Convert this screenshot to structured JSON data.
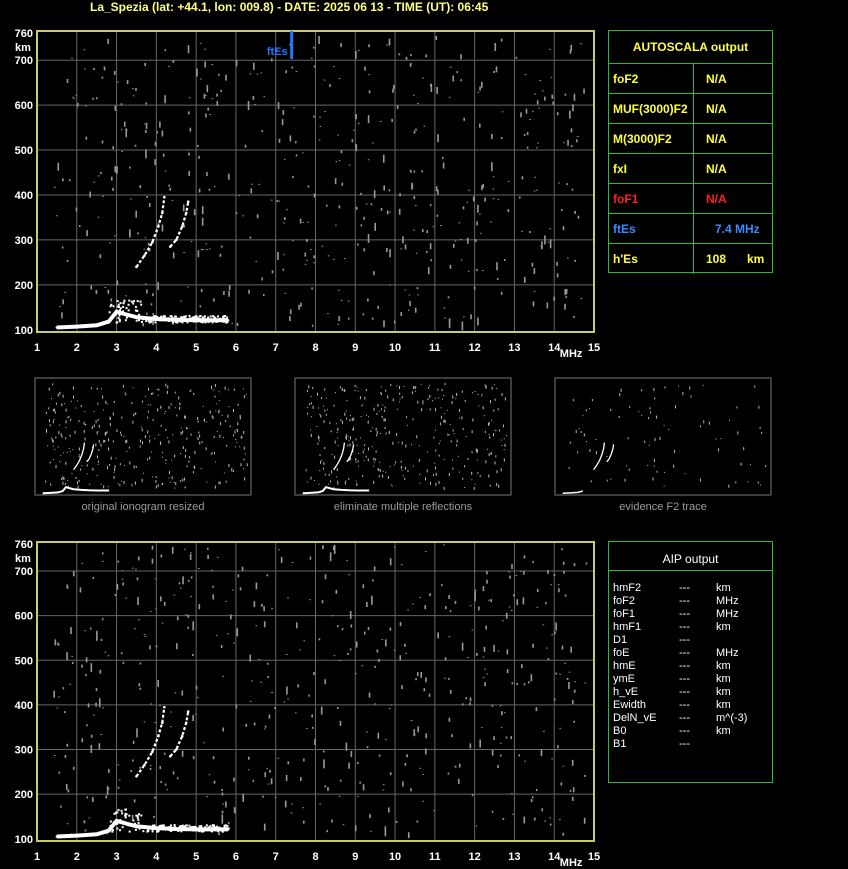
{
  "title": "La_Spezia (lat: +44.1, lon: 009.8) - DATE: 2025 06 13 - TIME (UT): 06:45",
  "colors": {
    "grid": "#666666",
    "frame": "#cccc66",
    "trace": "#ffffff",
    "noise": "#999999",
    "marker": "#1e78ff",
    "panel_border": "#2fb82f",
    "label_yellow": "#ffff40",
    "label_red": "#ff2020",
    "label_blue": "#3c8cff"
  },
  "chart_data": [
    {
      "type": "scatter",
      "name": "main-ionogram",
      "xlabel": "MHz",
      "ylabel": "km",
      "xlim": [
        1,
        15
      ],
      "ylim": [
        95,
        765
      ],
      "x_ticks": [
        1,
        2,
        3,
        4,
        5,
        6,
        7,
        8,
        9,
        10,
        11,
        12,
        13,
        14,
        15
      ],
      "y_ticks": [
        100,
        200,
        300,
        400,
        500,
        600,
        700,
        760
      ],
      "grid": true,
      "marker": {
        "label": "ftEs",
        "x": 7.4
      },
      "traces": [
        {
          "name": "E/Es trace",
          "x": [
            1.5,
            2.0,
            2.5,
            2.8,
            3.0,
            3.2,
            3.5,
            4.0,
            4.5,
            5.0,
            5.5,
            5.8
          ],
          "y": [
            105,
            107,
            110,
            118,
            140,
            135,
            128,
            124,
            122,
            121,
            121,
            121
          ]
        },
        {
          "name": "F trace O",
          "x": [
            3.5,
            3.7,
            3.9,
            4.05,
            4.15,
            4.2
          ],
          "y": [
            240,
            265,
            295,
            330,
            360,
            395
          ]
        },
        {
          "name": "F trace X",
          "x": [
            4.35,
            4.5,
            4.65,
            4.75,
            4.8
          ],
          "y": [
            285,
            300,
            330,
            360,
            385
          ]
        }
      ]
    },
    {
      "type": "scatter",
      "name": "aip-ionogram",
      "xlabel": "MHz",
      "ylabel": "km",
      "xlim": [
        1,
        15
      ],
      "ylim": [
        95,
        765
      ],
      "x_ticks": [
        1,
        2,
        3,
        4,
        5,
        6,
        7,
        8,
        9,
        10,
        11,
        12,
        13,
        14,
        15
      ],
      "y_ticks": [
        100,
        200,
        300,
        400,
        500,
        600,
        700,
        760
      ],
      "grid": true,
      "traces": [
        {
          "name": "E/Es trace",
          "x": [
            1.5,
            2.0,
            2.5,
            2.8,
            3.0,
            3.2,
            3.5,
            4.0,
            4.5,
            5.0,
            5.5,
            5.8
          ],
          "y": [
            105,
            107,
            110,
            118,
            140,
            135,
            128,
            124,
            122,
            121,
            121,
            121
          ]
        },
        {
          "name": "F trace O",
          "x": [
            3.5,
            3.7,
            3.9,
            4.05,
            4.15,
            4.2
          ],
          "y": [
            240,
            265,
            295,
            330,
            360,
            395
          ]
        },
        {
          "name": "F trace X",
          "x": [
            4.35,
            4.5,
            4.65,
            4.75,
            4.8
          ],
          "y": [
            285,
            300,
            330,
            360,
            385
          ]
        }
      ]
    }
  ],
  "thumbnails": [
    {
      "caption": "original ionogram resized",
      "density": 0.5
    },
    {
      "caption": "eliminate multiple reflections",
      "density": 0.5
    },
    {
      "caption": "evidence F2 trace",
      "density": 0.12
    }
  ],
  "autoscala": {
    "title": "AUTOSCALA output",
    "rows": [
      {
        "label": "foF2",
        "value": "N/A",
        "unit": "",
        "color": "#ffff40"
      },
      {
        "label": "MUF(3000)F2",
        "value": "N/A",
        "unit": "",
        "color": "#ffff40"
      },
      {
        "label": "M(3000)F2",
        "value": "N/A",
        "unit": "",
        "color": "#ffff40"
      },
      {
        "label": "fxI",
        "value": "N/A",
        "unit": "",
        "color": "#ffff40"
      },
      {
        "label": "foF1",
        "value": "N/A",
        "unit": "",
        "color": "#ff2020"
      },
      {
        "label": "ftEs",
        "value": "7.4 MHz",
        "unit": "",
        "color": "#3c8cff"
      },
      {
        "label": "h'Es",
        "value": "108",
        "unit": "km",
        "color": "#ffff40"
      }
    ]
  },
  "aip": {
    "title": "AIP output",
    "rows": [
      {
        "param": "hmF2",
        "value": "---",
        "unit": "km"
      },
      {
        "param": "foF2",
        "value": "---",
        "unit": "MHz"
      },
      {
        "param": "foF1",
        "value": "---",
        "unit": "MHz"
      },
      {
        "param": "hmF1",
        "value": "---",
        "unit": "km"
      },
      {
        "param": "D1",
        "value": "---",
        "unit": ""
      },
      {
        "param": "foE",
        "value": "---",
        "unit": "MHz"
      },
      {
        "param": "hmE",
        "value": "---",
        "unit": "km"
      },
      {
        "param": "ymE",
        "value": "---",
        "unit": "km"
      },
      {
        "param": "h_vE",
        "value": "---",
        "unit": "km"
      },
      {
        "param": "Ewidth",
        "value": "---",
        "unit": "km"
      },
      {
        "param": "DelN_vE",
        "value": "---",
        "unit": "m^(-3)"
      },
      {
        "param": "B0",
        "value": "---",
        "unit": "km"
      },
      {
        "param": "B1",
        "value": "---",
        "unit": ""
      }
    ]
  }
}
